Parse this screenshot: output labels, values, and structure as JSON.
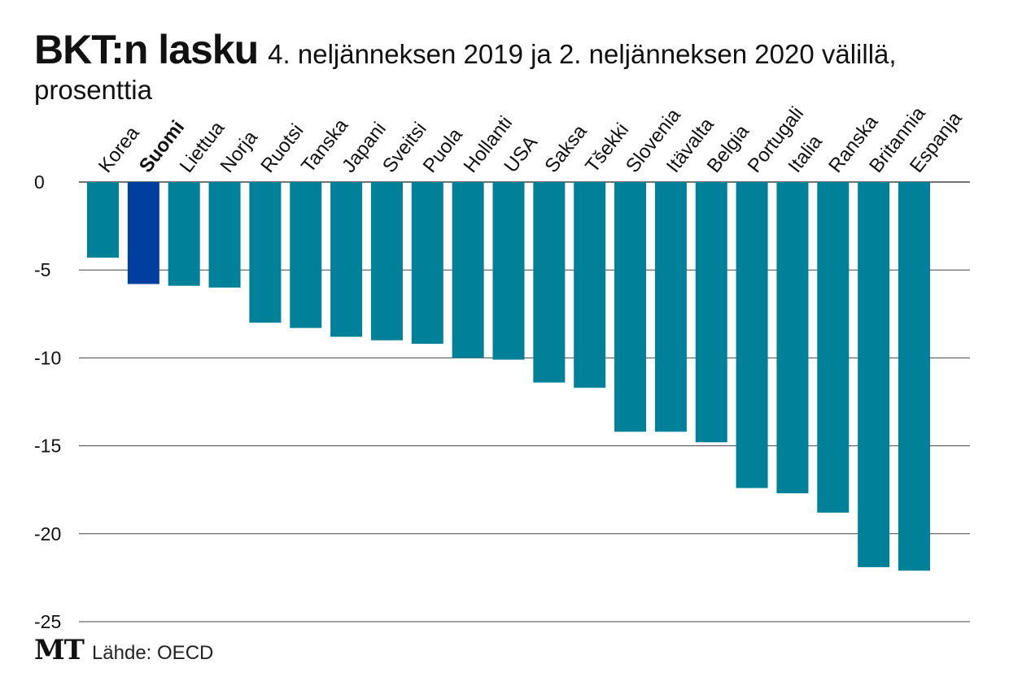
{
  "title": "BKT:n lasku",
  "subtitle": "4. neljänneksen 2019 ja 2. neljänneksen 2020 välillä,",
  "subtitle_line2": "prosenttia",
  "footer": {
    "logo": "MT",
    "source": "Lähde: OECD"
  },
  "colors": {
    "bar": "#00819a",
    "highlight": "#003f9e",
    "grid": "#444444"
  },
  "chart_data": {
    "type": "bar",
    "title": "BKT:n lasku",
    "subtitle": "4. neljänneksen 2019 ja 2. neljänneksen 2020 välillä, prosenttia",
    "xlabel": "",
    "ylabel": "",
    "ylim": [
      -25,
      0
    ],
    "yticks": [
      0,
      -5,
      -10,
      -15,
      -20,
      -25
    ],
    "ytick_labels": [
      "0",
      "-5",
      "-10",
      "-15",
      "-20",
      "-25"
    ],
    "grid": true,
    "highlight": "Suomi",
    "categories": [
      "Korea",
      "Suomi",
      "Liettua",
      "Norja",
      "Ruotsi",
      "Tanska",
      "Japani",
      "Sveitsi",
      "Puola",
      "Hollanti",
      "USA",
      "Saksa",
      "Tšekki",
      "Slovenia",
      "Itävalta",
      "Belgia",
      "Portugali",
      "Italia",
      "Ranska",
      "Britannia",
      "Espanja"
    ],
    "values": [
      -4.3,
      -5.8,
      -5.9,
      -6.0,
      -8.0,
      -8.3,
      -8.8,
      -9.0,
      -9.2,
      -10.0,
      -10.1,
      -11.4,
      -11.7,
      -14.2,
      -14.2,
      -14.8,
      -17.4,
      -17.7,
      -18.8,
      -21.9,
      -22.1
    ]
  }
}
